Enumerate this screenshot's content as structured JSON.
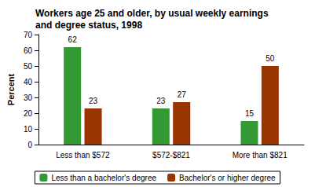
{
  "chart_data": {
    "type": "bar",
    "title": "Workers age 25 and older, by usual weekly earnings\nand degree status, 1998",
    "y_label": "Percent",
    "categories": [
      "Less than $572",
      "$572-$821",
      "More than $821"
    ],
    "series": [
      {
        "name": "Less than a bachelor's degree",
        "color": "#339933",
        "values": [
          62,
          23,
          15
        ]
      },
      {
        "name": "Bachelor's or higher degree",
        "color": "#993300",
        "values": [
          23,
          27,
          50
        ]
      }
    ],
    "ylim": [
      0,
      70
    ],
    "yticks": [
      0,
      10,
      20,
      30,
      40,
      50,
      60,
      70
    ],
    "grid": false,
    "legend": "bottom",
    "data_labels": true
  }
}
